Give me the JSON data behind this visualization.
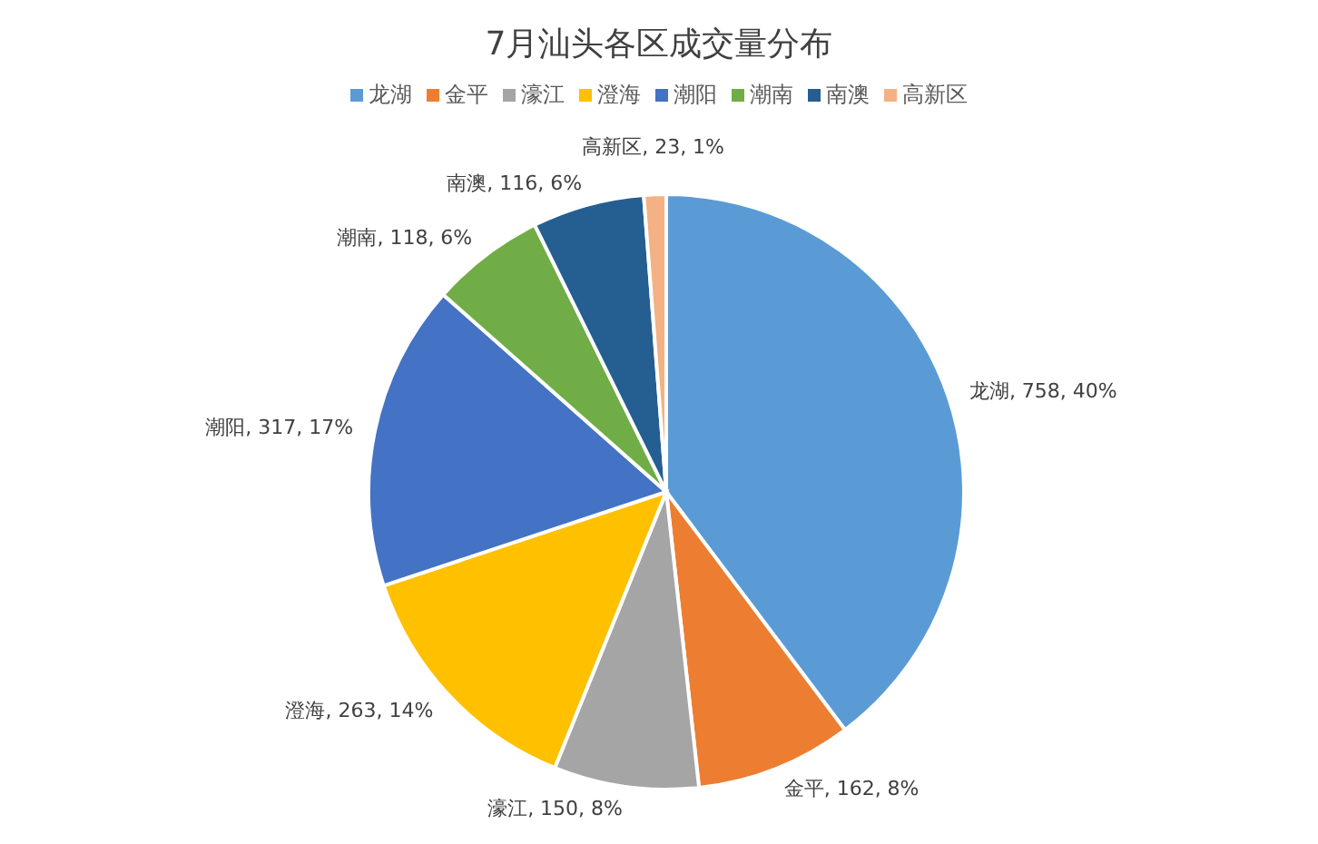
{
  "chart_data": {
    "type": "pie",
    "title": "7月汕头各区成交量分布",
    "categories": [
      "龙湖",
      "金平",
      "濠江",
      "澄海",
      "潮阳",
      "潮南",
      "南澳",
      "高新区"
    ],
    "values": [
      758,
      162,
      150,
      263,
      317,
      118,
      116,
      23
    ],
    "colors": [
      "#5b9bd5",
      "#ed7d31",
      "#a5a5a5",
      "#ffc000",
      "#4472c4",
      "#70ad47",
      "#255e91",
      "#f4b183"
    ],
    "value_labels": [
      "龙湖, 758, 40%",
      "金平, 162, 8%",
      "濠江, 150, 8%",
      "澄海, 263, 14%",
      "潮阳, 317, 17%",
      "潮南, 118, 6%",
      "南澳, 116, 6%",
      "高新区, 23, 1%"
    ],
    "legend": "top"
  }
}
